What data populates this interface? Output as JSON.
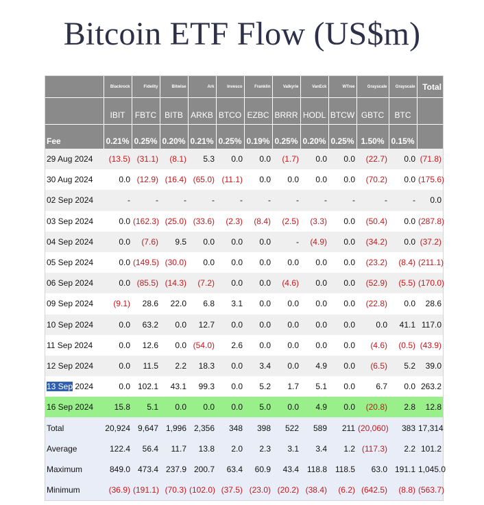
{
  "title": "Bitcoin ETF Flow (US$m)",
  "header": {
    "issuers": [
      "Blackrock",
      "Fidelity",
      "Bitwise",
      "Ark",
      "Invesco",
      "Franklin",
      "Valkyrie",
      "VanEck",
      "WTree",
      "Grayscale",
      "Grayscale"
    ],
    "total_label": "Total",
    "tickers": [
      "IBIT",
      "FBTC",
      "BITB",
      "ARKB",
      "BTCO",
      "EZBC",
      "BRRR",
      "HODL",
      "BTCW",
      "GBTC",
      "BTC"
    ],
    "fee_label": "Fee",
    "fees": [
      "0.21%",
      "0.25%",
      "0.20%",
      "0.21%",
      "0.25%",
      "0.19%",
      "0.25%",
      "0.20%",
      "0.25%",
      "1.50%",
      "0.15%"
    ]
  },
  "rows": [
    {
      "label": "29 Aug 2024",
      "values": [
        "(13.5)",
        "(31.1)",
        "(8.1)",
        "5.3",
        "0.0",
        "0.0",
        "(1.7)",
        "0.0",
        "0.0",
        "(22.7)",
        "0.0",
        "(71.8)"
      ]
    },
    {
      "label": "30 Aug 2024",
      "values": [
        "0.0",
        "(12.9)",
        "(16.4)",
        "(65.0)",
        "(11.1)",
        "0.0",
        "0.0",
        "0.0",
        "0.0",
        "(70.2)",
        "0.0",
        "(175.6)"
      ]
    },
    {
      "label": "02 Sep 2024",
      "values": [
        "-",
        "-",
        "-",
        "-",
        "-",
        "-",
        "-",
        "-",
        "-",
        "-",
        "-",
        "0.0"
      ]
    },
    {
      "label": "03 Sep 2024",
      "values": [
        "0.0",
        "(162.3)",
        "(25.0)",
        "(33.6)",
        "(2.3)",
        "(8.4)",
        "(2.5)",
        "(3.3)",
        "0.0",
        "(50.4)",
        "0.0",
        "(287.8)"
      ]
    },
    {
      "label": "04 Sep 2024",
      "values": [
        "0.0",
        "(7.6)",
        "9.5",
        "0.0",
        "0.0",
        "0.0",
        "-",
        "(4.9)",
        "0.0",
        "(34.2)",
        "0.0",
        "(37.2)"
      ]
    },
    {
      "label": "05 Sep 2024",
      "values": [
        "0.0",
        "(149.5)",
        "(30.0)",
        "0.0",
        "0.0",
        "0.0",
        "0.0",
        "0.0",
        "0.0",
        "(23.2)",
        "(8.4)",
        "(211.1)"
      ]
    },
    {
      "label": "06 Sep 2024",
      "values": [
        "0.0",
        "(85.5)",
        "(14.3)",
        "(7.2)",
        "0.0",
        "0.0",
        "(4.6)",
        "0.0",
        "0.0",
        "(52.9)",
        "(5.5)",
        "(170.0)"
      ]
    },
    {
      "label": "09 Sep 2024",
      "values": [
        "(9.1)",
        "28.6",
        "22.0",
        "6.8",
        "3.1",
        "0.0",
        "0.0",
        "0.0",
        "0.0",
        "(22.8)",
        "0.0",
        "28.6"
      ]
    },
    {
      "label": "10 Sep 2024",
      "values": [
        "0.0",
        "63.2",
        "0.0",
        "12.7",
        "0.0",
        "0.0",
        "0.0",
        "0.0",
        "0.0",
        "0.0",
        "41.1",
        "117.0"
      ]
    },
    {
      "label": "11 Sep 2024",
      "values": [
        "0.0",
        "12.6",
        "0.0",
        "(54.0)",
        "2.6",
        "0.0",
        "0.0",
        "0.0",
        "0.0",
        "(4.6)",
        "(0.5)",
        "(43.9)"
      ]
    },
    {
      "label": "12 Sep 2024",
      "values": [
        "0.0",
        "11.5",
        "2.2",
        "18.3",
        "0.0",
        "3.4",
        "0.0",
        "4.9",
        "0.0",
        "(6.5)",
        "5.2",
        "39.0"
      ]
    },
    {
      "label_selected": "13 Sep",
      "label_rest": " 2024",
      "values": [
        "0.0",
        "102.1",
        "43.1",
        "99.3",
        "0.0",
        "5.2",
        "1.7",
        "5.1",
        "0.0",
        "6.7",
        "0.0",
        "263.2"
      ]
    },
    {
      "label": "16 Sep 2024",
      "values": [
        "15.8",
        "5.1",
        "0.0",
        "0.0",
        "0.0",
        "5.0",
        "0.0",
        "4.9",
        "0.0",
        "(20.8)",
        "2.8",
        "12.8"
      ]
    },
    {
      "label": "Total",
      "values": [
        "20,924",
        "9,647",
        "1,996",
        "2,356",
        "348",
        "398",
        "522",
        "589",
        "211",
        "(20,060)",
        "383",
        "17,314"
      ]
    },
    {
      "label": "Average",
      "values": [
        "122.4",
        "56.4",
        "11.7",
        "13.8",
        "2.0",
        "2.3",
        "3.1",
        "3.4",
        "1.2",
        "(117.3)",
        "2.2",
        "101.2"
      ]
    },
    {
      "label": "Maximum",
      "values": [
        "849.0",
        "473.4",
        "237.9",
        "200.7",
        "63.4",
        "60.9",
        "43.4",
        "118.8",
        "118.5",
        "63.0",
        "191.1",
        "1,045.0"
      ]
    },
    {
      "label": "Minimum",
      "values": [
        "(36.9)",
        "(191.1)",
        "(70.3)",
        "(102.0)",
        "(37.5)",
        "(23.0)",
        "(20.2)",
        "(38.4)",
        "(6.2)",
        "(642.5)",
        "(8.8)",
        "(563.7)"
      ]
    }
  ],
  "colors": {
    "header_bg": "#8a8a8a",
    "negative": "#c0181c",
    "highlight_row": "#99f08a",
    "summary_row": "#e9edf7",
    "selection": "#2f5fb0"
  }
}
